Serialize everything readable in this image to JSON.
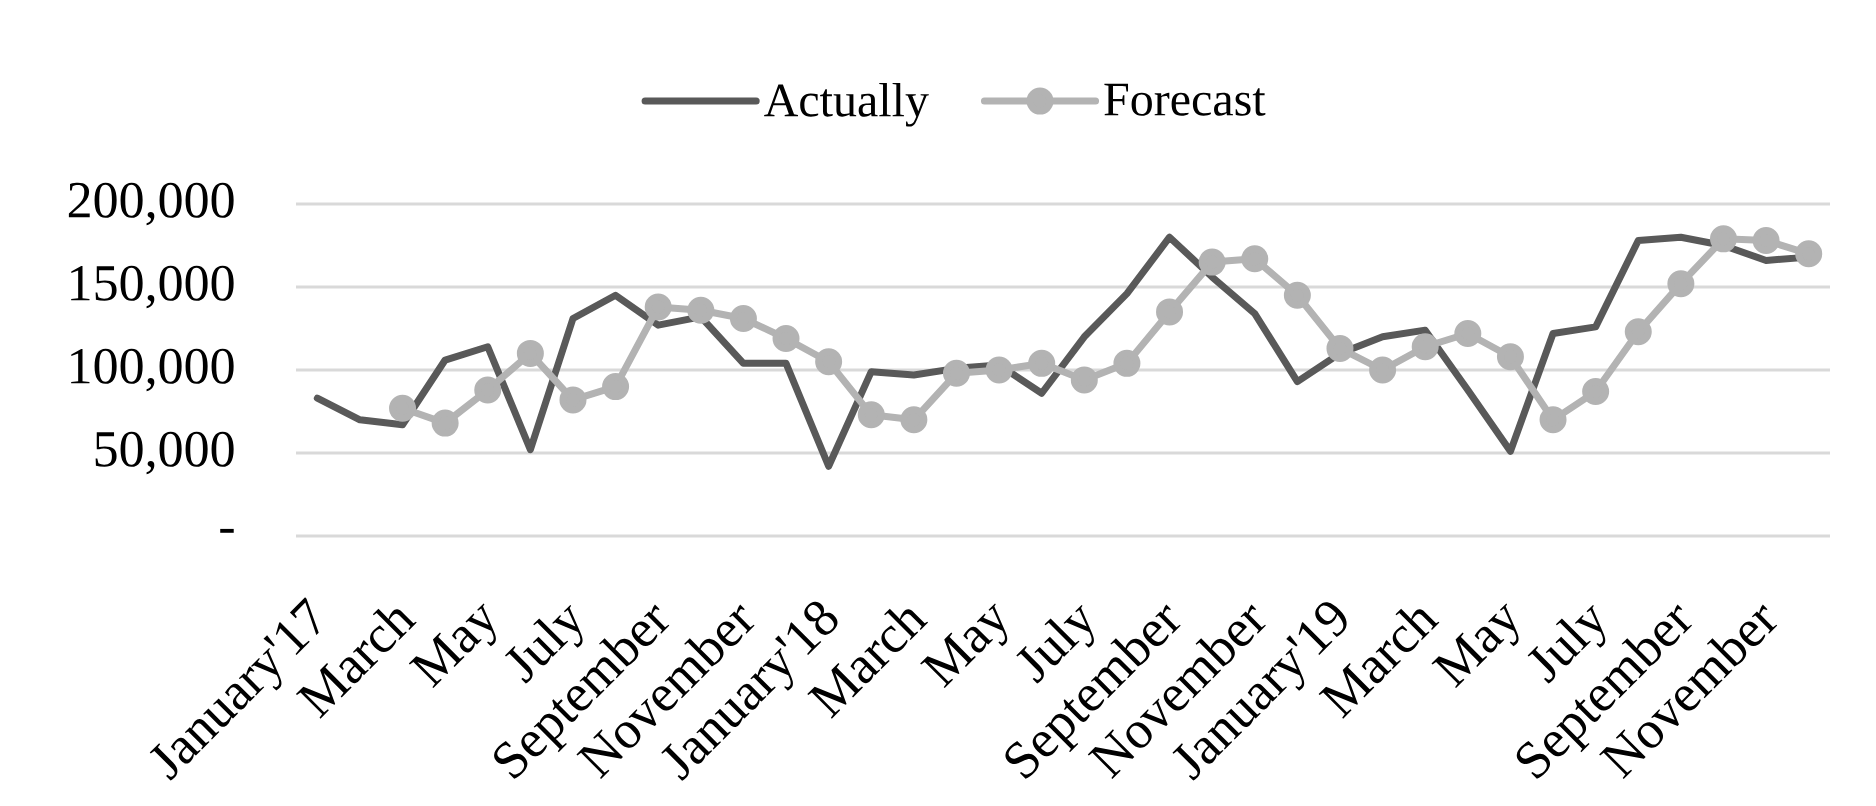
{
  "chart_data": {
    "type": "line",
    "categories": [
      "January'17",
      null,
      "March",
      null,
      "May",
      null,
      "July",
      null,
      "September",
      null,
      "November",
      null,
      "January'18",
      null,
      "March",
      null,
      "May",
      null,
      "July",
      null,
      "September",
      null,
      "November",
      null,
      "January'19",
      null,
      "March",
      null,
      "May",
      null,
      "July",
      null,
      "September",
      null,
      "November",
      null
    ],
    "series": [
      {
        "name": "Actually",
        "color": "#595959",
        "marker": "none",
        "values": [
          83000,
          70000,
          67000,
          106000,
          114000,
          52000,
          131000,
          145000,
          127000,
          132000,
          104000,
          104000,
          42000,
          99000,
          97000,
          101000,
          103000,
          86000,
          120000,
          146000,
          180000,
          156000,
          134000,
          93000,
          110000,
          120000,
          124000,
          88000,
          51000,
          122000,
          126000,
          178000,
          180000,
          175000,
          166000,
          168000
        ]
      },
      {
        "name": "Forecast",
        "color": "#b3b3b3",
        "marker": "circle",
        "values": [
          null,
          null,
          77000,
          68000,
          88000,
          110000,
          82000,
          90000,
          138000,
          136000,
          131000,
          119000,
          105000,
          73000,
          70000,
          98000,
          100000,
          104000,
          94000,
          104000,
          135000,
          165000,
          167000,
          145000,
          113000,
          100000,
          114000,
          122000,
          108000,
          70000,
          87000,
          123000,
          152000,
          179000,
          178000,
          170000
        ]
      }
    ],
    "ylim": [
      0,
      200000
    ],
    "yticks": [
      {
        "value": 0,
        "label": "-"
      },
      {
        "value": 50000,
        "label": "50,000"
      },
      {
        "value": 100000,
        "label": "100,000"
      },
      {
        "value": 150000,
        "label": "150,000"
      },
      {
        "value": 200000,
        "label": "200,000"
      }
    ],
    "grid": "y",
    "legend": "top"
  }
}
